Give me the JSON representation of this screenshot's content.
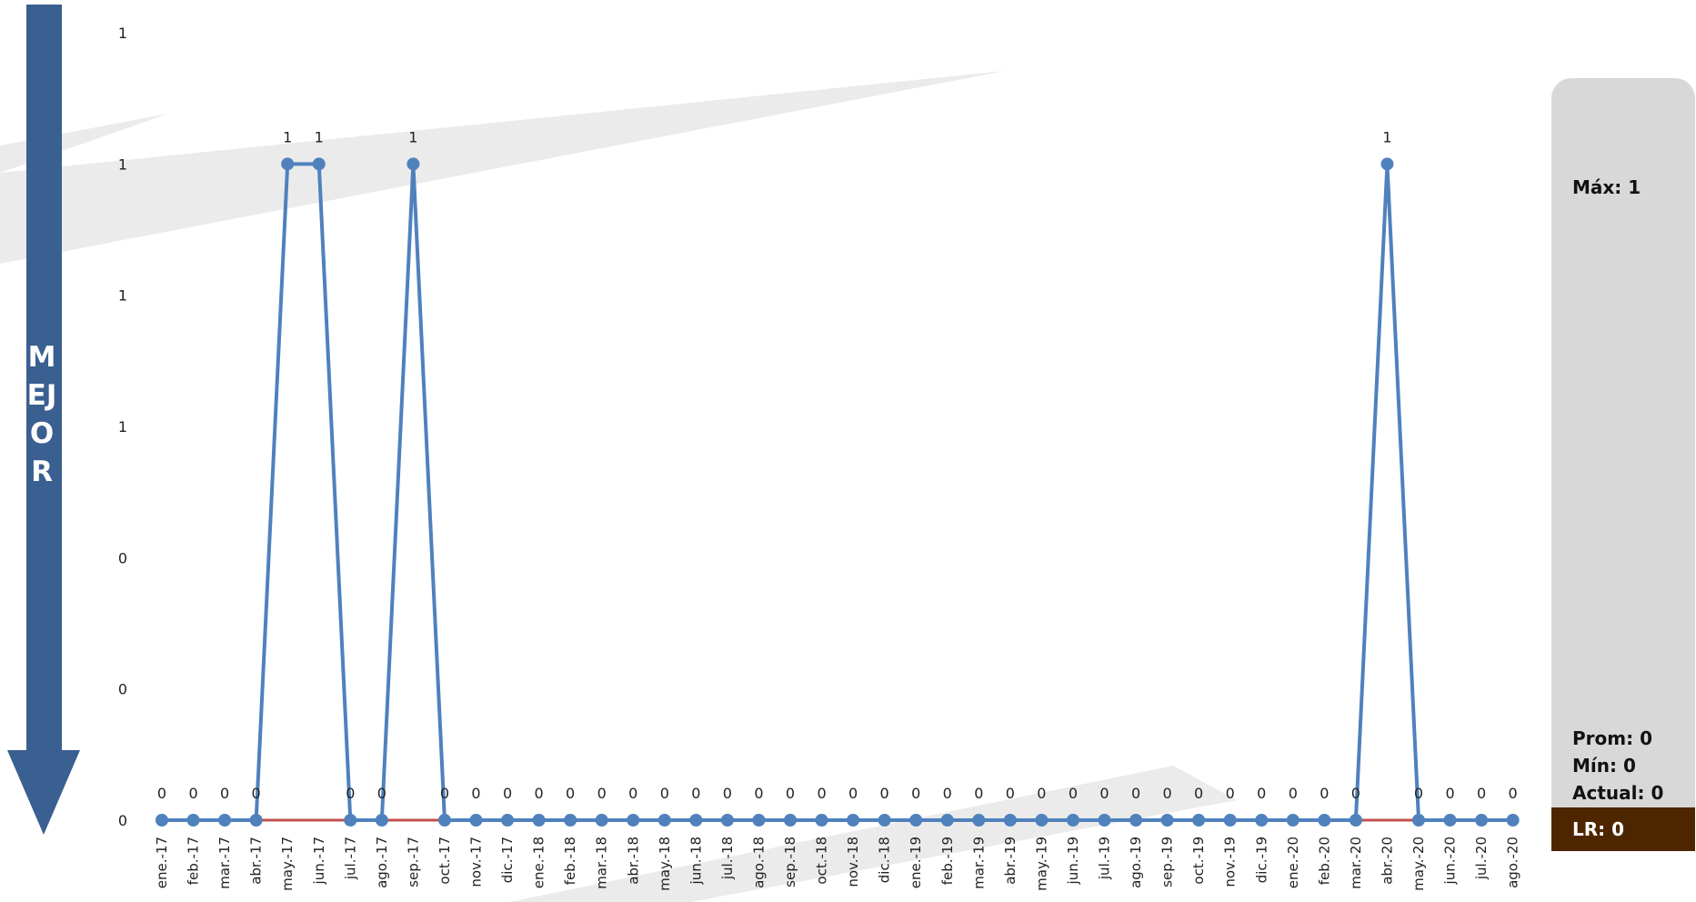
{
  "arrow": {
    "text": "MEJOR",
    "color": "#3a5f91"
  },
  "stats": {
    "max_label": "Máx: 1",
    "prom_label": "Prom: 0",
    "min_label": "Mín: 0",
    "actual_label": "Actual: 0",
    "lr_label": "LR: 0"
  },
  "colors": {
    "series": "#4f81bd",
    "reference": "#c0504d",
    "lr_box": "#4d2600",
    "panel": "#d8d8d8"
  },
  "chart_data": {
    "type": "line",
    "y_tick_labels": [
      "0",
      "0",
      "0",
      "1",
      "1",
      "1",
      "1"
    ],
    "ylim": [
      0,
      1.2
    ],
    "grid": false,
    "categories": [
      "ene.-17",
      "feb.-17",
      "mar.-17",
      "abr.-17",
      "may.-17",
      "jun.-17",
      "jul.-17",
      "ago.-17",
      "sep.-17",
      "oct.-17",
      "nov.-17",
      "dic.-17",
      "ene.-18",
      "feb.-18",
      "mar.-18",
      "abr.-18",
      "may.-18",
      "jun.-18",
      "jul.-18",
      "ago.-18",
      "sep.-18",
      "oct.-18",
      "nov.-18",
      "dic.-18",
      "ene.-19",
      "feb.-19",
      "mar.-19",
      "abr.-19",
      "may.-19",
      "jun.-19",
      "jul.-19",
      "ago.-19",
      "sep.-19",
      "oct.-19",
      "nov.-19",
      "dic.-19",
      "ene.-20",
      "feb.-20",
      "mar.-20",
      "abr.-20",
      "may.-20",
      "jun.-20",
      "jul.-20",
      "ago.-20"
    ],
    "series": [
      {
        "values": [
          0,
          0,
          0,
          0,
          1,
          1,
          0,
          0,
          1,
          0,
          0,
          0,
          0,
          0,
          0,
          0,
          0,
          0,
          0,
          0,
          0,
          0,
          0,
          0,
          0,
          0,
          0,
          0,
          0,
          0,
          0,
          0,
          0,
          0,
          0,
          0,
          0,
          0,
          0,
          1,
          0,
          0,
          0,
          0
        ],
        "data_labels": [
          "0",
          "0",
          "0",
          "0",
          "1",
          "1",
          "0",
          "0",
          "1",
          "0",
          "0",
          "0",
          "0",
          "0",
          "0",
          "0",
          "0",
          "0",
          "0",
          "0",
          "0",
          "0",
          "0",
          "0",
          "0",
          "0",
          "0",
          "0",
          "0",
          "0",
          "0",
          "0",
          "0",
          "0",
          "0",
          "0",
          "0",
          "0",
          "0",
          "1",
          "0",
          "0",
          "0",
          "0"
        ]
      },
      {
        "values": [
          0,
          0,
          0,
          0,
          0,
          0,
          0,
          0,
          0,
          0,
          0,
          0,
          0,
          0,
          0,
          0,
          0,
          0,
          0,
          0,
          0,
          0,
          0,
          0,
          0,
          0,
          0,
          0,
          0,
          0,
          0,
          0,
          0,
          0,
          0,
          0,
          0,
          0,
          0,
          0,
          0,
          0,
          0,
          0
        ]
      }
    ]
  }
}
